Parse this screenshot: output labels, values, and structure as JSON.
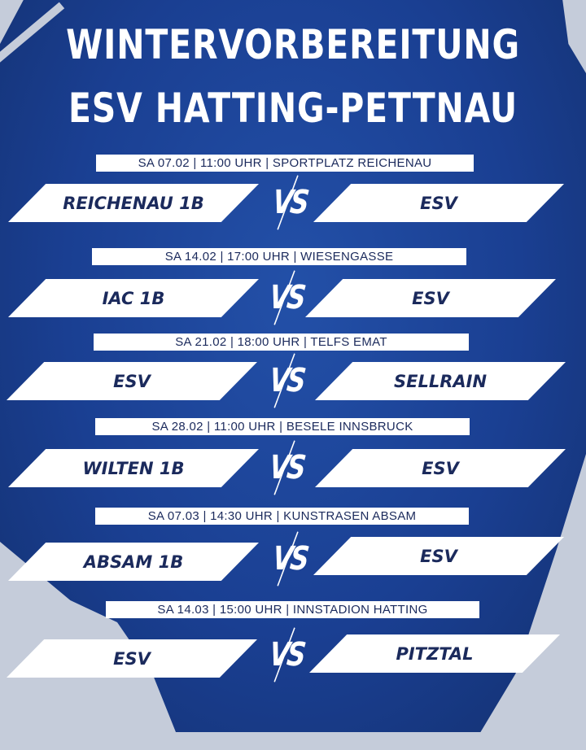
{
  "title": {
    "line1": "WINTERVORBEREITUNG",
    "line2": "ESV HATTING-PETTNAU"
  },
  "vs_label": "VS",
  "colors": {
    "background": "#1a3f92",
    "text_dark": "#1b2a5c",
    "panel": "#ffffff",
    "corner": "#c5ccda"
  },
  "matches": [
    {
      "info": "SA 07.02 | 11:00 UHR | SPORTPLATZ REICHENAU",
      "home": "REICHENAU 1B",
      "away": "ESV"
    },
    {
      "info": "SA 14.02 | 17:00 UHR | WIESENGASSE",
      "home": "IAC 1B",
      "away": "ESV"
    },
    {
      "info": "SA 21.02 | 18:00 UHR | TELFS EMAT",
      "home": "ESV",
      "away": "SELLRAIN"
    },
    {
      "info": "SA 28.02 | 11:00 UHR | BESELE INNSBRUCK",
      "home": "WILTEN 1B",
      "away": "ESV"
    },
    {
      "info": "SA 07.03 | 14:30 UHR | KUNSTRASEN ABSAM",
      "home": "ABSAM 1B",
      "away": "ESV"
    },
    {
      "info": "SA 14.03 | 15:00 UHR | INNSTADION HATTING",
      "home": "ESV",
      "away": "PITZTAL"
    }
  ]
}
